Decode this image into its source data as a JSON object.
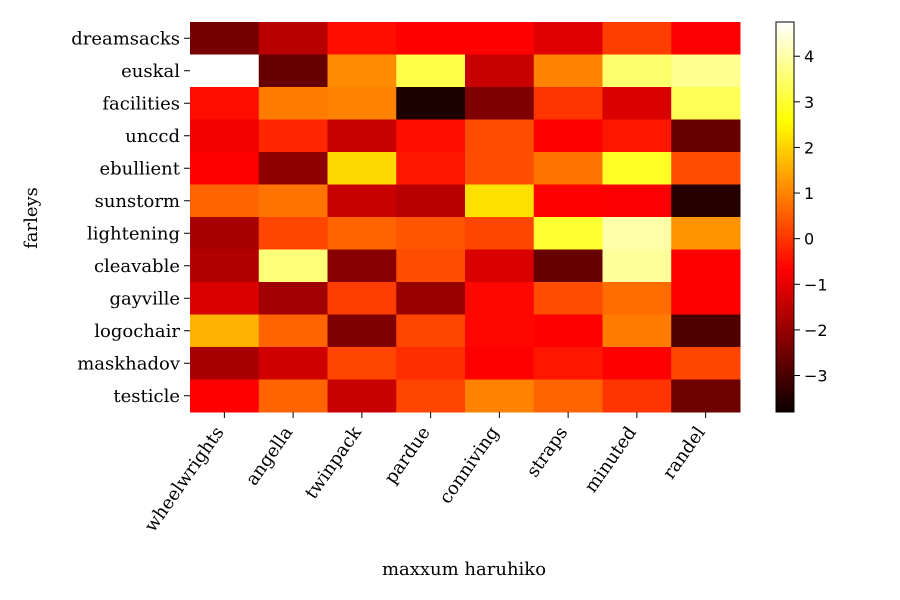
{
  "chart_data": {
    "type": "heatmap",
    "title": "",
    "xlabel": "maxxum haruhiko",
    "ylabel": "farleys",
    "colormap": "hot",
    "vmin": -3.8,
    "vmax": 4.75,
    "colorbar_ticks": [
      -3,
      -2,
      -1,
      0,
      1,
      2,
      3,
      4
    ],
    "colorbar_tick_labels": [
      "−3",
      "−2",
      "−1",
      "0",
      "1",
      "2",
      "3",
      "4"
    ],
    "x_categories": [
      "wheelwrights",
      "angella",
      "twinpack",
      "pardue",
      "conniving",
      "straps",
      "minuted",
      "randel"
    ],
    "y_categories": [
      "dreamsacks",
      "euskal",
      "facilities",
      "unccd",
      "ebullient",
      "sunstorm",
      "lightening",
      "cleavable",
      "gayville",
      "logochair",
      "maskhadov",
      "testicle"
    ],
    "values": [
      [
        -2.7,
        -1.9,
        -0.5,
        -0.9,
        -0.7,
        -1.4,
        0.1,
        -1.1
      ],
      [
        4.75,
        -2.9,
        1.1,
        3.2,
        -1.7,
        1.0,
        3.5,
        3.8
      ],
      [
        -0.5,
        0.9,
        1.0,
        -3.8,
        -2.6,
        0.0,
        -1.5,
        3.3
      ],
      [
        -1.2,
        -0.2,
        -1.7,
        -0.5,
        0.3,
        -1.0,
        -0.4,
        -2.9
      ],
      [
        -0.7,
        -2.4,
        2.1,
        -0.4,
        0.3,
        0.8,
        2.9,
        0.3
      ],
      [
        0.6,
        0.8,
        -1.7,
        -1.9,
        2.2,
        -0.8,
        -1.1,
        -3.7
      ],
      [
        -2.1,
        0.2,
        0.6,
        0.4,
        0.2,
        3.0,
        4.0,
        1.2
      ],
      [
        -2.0,
        3.6,
        -2.5,
        0.3,
        -1.5,
        -2.9,
        3.9,
        -0.9
      ],
      [
        -1.5,
        -2.2,
        0.1,
        -2.3,
        -0.6,
        0.3,
        0.7,
        -1.0
      ],
      [
        1.6,
        0.6,
        -2.6,
        0.2,
        -0.6,
        -0.7,
        0.9,
        -3.2
      ],
      [
        -2.1,
        -1.6,
        0.2,
        -0.1,
        -0.9,
        -0.4,
        -1.0,
        0.2
      ],
      [
        -1.0,
        0.6,
        -1.7,
        0.2,
        1.0,
        0.6,
        0.0,
        -2.8
      ]
    ]
  }
}
